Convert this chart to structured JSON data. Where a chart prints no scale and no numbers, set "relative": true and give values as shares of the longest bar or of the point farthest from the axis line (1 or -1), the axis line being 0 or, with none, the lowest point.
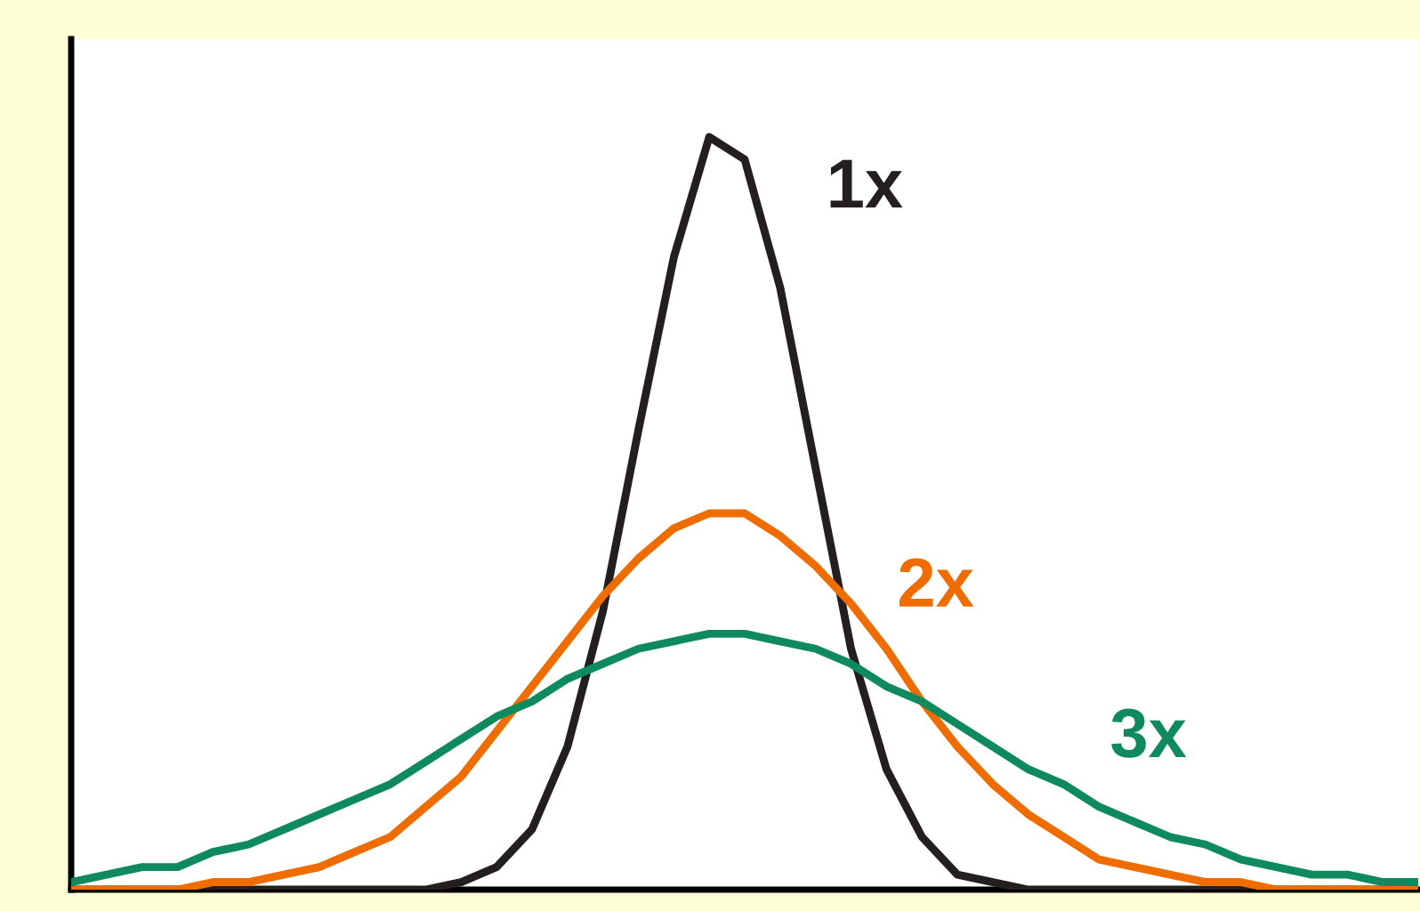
{
  "chart_data": {
    "type": "line",
    "relative": true,
    "categories": [
      null,
      null,
      null,
      null,
      null,
      null,
      null,
      null,
      null,
      null,
      null,
      null,
      null,
      null,
      null,
      null,
      null,
      null,
      null,
      null,
      null,
      null,
      null,
      null,
      null,
      null,
      null,
      null,
      null,
      null,
      null,
      null,
      null,
      null,
      null,
      null,
      null,
      null,
      null
    ],
    "series": [
      {
        "name": "1x",
        "color": "#231f20",
        "values": [
          0,
          0,
          0,
          0,
          0,
          0,
          0,
          0,
          0,
          0,
          0,
          0.01,
          0.03,
          0.08,
          0.19,
          0.37,
          0.61,
          0.84,
          1.0,
          0.97,
          0.8,
          0.56,
          0.32,
          0.16,
          0.07,
          0.02,
          0.01,
          0,
          0,
          0,
          0,
          0,
          0,
          0,
          0,
          0,
          0,
          0,
          0
        ]
      },
      {
        "name": "2x",
        "color": "#ef6c00",
        "values": [
          0,
          0,
          0,
          0,
          0.01,
          0.01,
          0.02,
          0.03,
          0.05,
          0.07,
          0.11,
          0.15,
          0.21,
          0.27,
          0.33,
          0.39,
          0.44,
          0.48,
          0.5,
          0.5,
          0.47,
          0.43,
          0.38,
          0.32,
          0.25,
          0.19,
          0.14,
          0.1,
          0.07,
          0.04,
          0.03,
          0.02,
          0.01,
          0.01,
          0,
          0,
          0,
          0,
          0
        ]
      },
      {
        "name": "3x",
        "color": "#0f8a5f",
        "values": [
          0.01,
          0.02,
          0.03,
          0.03,
          0.05,
          0.06,
          0.08,
          0.1,
          0.12,
          0.14,
          0.17,
          0.2,
          0.23,
          0.25,
          0.28,
          0.3,
          0.32,
          0.33,
          0.34,
          0.34,
          0.33,
          0.32,
          0.3,
          0.27,
          0.25,
          0.22,
          0.19,
          0.16,
          0.14,
          0.11,
          0.09,
          0.07,
          0.06,
          0.04,
          0.03,
          0.02,
          0.02,
          0.01,
          0.01
        ]
      }
    ],
    "grid": false,
    "legend": false
  }
}
